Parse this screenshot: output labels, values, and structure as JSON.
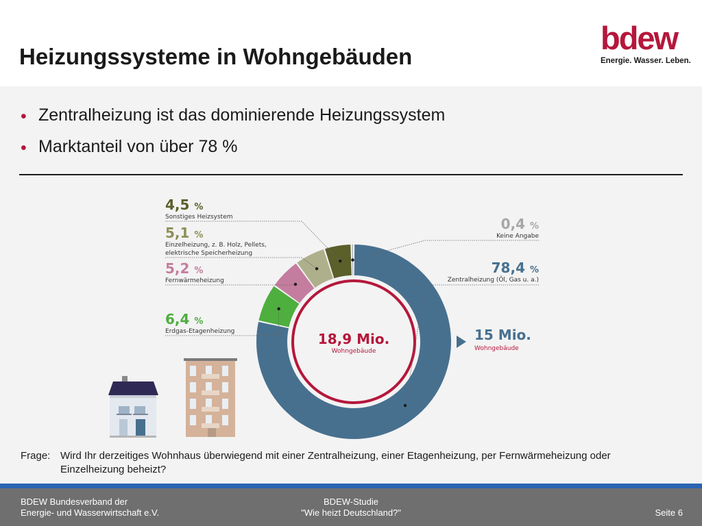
{
  "title": "Heizungssysteme in Wohngebäuden",
  "logo": {
    "word": "bdew",
    "tagline": "Energie. Wasser. Leben."
  },
  "bullets": [
    "Zentralheizung ist das dominierende Heizungssystem",
    "Marktanteil von über 78 %"
  ],
  "chart_data": {
    "type": "pie",
    "variant": "donut",
    "center_value": "18,9 Mio.",
    "center_label": "Wohngebäude",
    "callout_value": "15 Mio.",
    "callout_label": "Wohngebäude",
    "slices": [
      {
        "value_label": "78,4",
        "unit": "%",
        "value": 78.4,
        "label": "Zentralheizung (Öl, Gas u. a.)",
        "color": "#47708f"
      },
      {
        "value_label": "6,4",
        "unit": "%",
        "value": 6.4,
        "label": "Erdgas-Etagenheizung",
        "color": "#4eae3e"
      },
      {
        "value_label": "5,2",
        "unit": "%",
        "value": 5.2,
        "label": "Fernwärmeheizung",
        "color": "#c47d9e"
      },
      {
        "value_label": "5,1",
        "unit": "%",
        "value": 5.1,
        "label_lines": [
          "Einzelheizung, z. B. Holz, Pellets,",
          "elektrische Speicherheizung"
        ],
        "color": "#aeb08c"
      },
      {
        "value_label": "4,5",
        "unit": "%",
        "value": 4.5,
        "label": "Sonstiges Heizsystem",
        "color": "#5b5f2a"
      },
      {
        "value_label": "0,4",
        "unit": "%",
        "value": 0.4,
        "label": "Keine Angabe",
        "color": "#a6a6a6"
      }
    ],
    "colors": {
      "accent": "#b5173b"
    }
  },
  "question": {
    "label": "Frage:",
    "text": "Wird Ihr derzeitiges Wohnhaus überwiegend mit einer Zentralheizung, einer Etagenheizung, per Fernwärmeheizung oder Einzelheizung beheizt?"
  },
  "footer": {
    "left_line1": "BDEW Bundesverband der",
    "left_line2": "Energie- und Wasserwirtschaft e.V.",
    "center_line1": "BDEW-Studie",
    "center_line2": "\"Wie heizt Deutschland?\"",
    "page": "Seite 6"
  }
}
